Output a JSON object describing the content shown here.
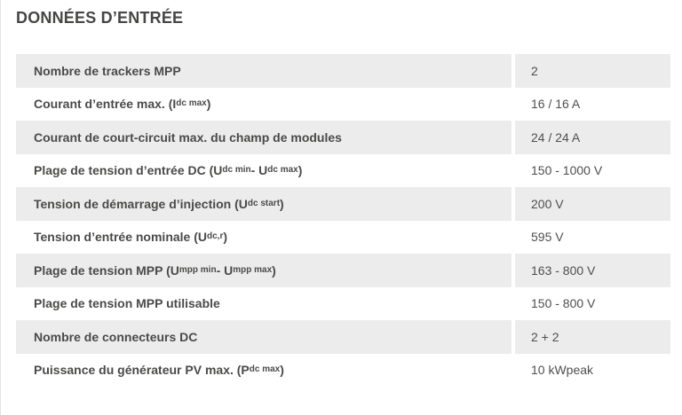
{
  "section": {
    "title": "DONNÉES D’ENTRÉE"
  },
  "colors": {
    "row_alt_bg": "#ebeceb",
    "title_text": "#464645",
    "label_text": "#4a4a49",
    "value_text": "#4f4f4e",
    "page_border": "#e3e3e3"
  },
  "table": {
    "rows": [
      {
        "label_parts": [
          {
            "t": "Nombre de trackers MPP"
          }
        ],
        "value": "2"
      },
      {
        "label_parts": [
          {
            "t": "Courant d’entrée max. (I"
          },
          {
            "sub": "dc max"
          },
          {
            "t": ")"
          }
        ],
        "value": "16 / 16 A"
      },
      {
        "label_parts": [
          {
            "t": "Courant de court-circuit max. du champ de modules"
          }
        ],
        "value": "24 / 24 A"
      },
      {
        "label_parts": [
          {
            "t": "Plage de tension d’entrée DC (U"
          },
          {
            "sub": "dc min"
          },
          {
            "t": " - U"
          },
          {
            "sub": "dc max"
          },
          {
            "t": ")"
          }
        ],
        "value": "150 - 1000 V"
      },
      {
        "label_parts": [
          {
            "t": "Tension de démarrage d’injection (U"
          },
          {
            "sub": "dc start"
          },
          {
            "t": ")"
          }
        ],
        "value": "200 V"
      },
      {
        "label_parts": [
          {
            "t": "Tension d’entrée nominale (U"
          },
          {
            "sub": "dc,r"
          },
          {
            "t": ")"
          }
        ],
        "value": "595 V"
      },
      {
        "label_parts": [
          {
            "t": "Plage de tension MPP (U"
          },
          {
            "sub": "mpp min"
          },
          {
            "t": " - U"
          },
          {
            "sub": "mpp max"
          },
          {
            "t": ")"
          }
        ],
        "value": "163 - 800 V"
      },
      {
        "label_parts": [
          {
            "t": "Plage de tension MPP utilisable"
          }
        ],
        "value": "150 - 800 V"
      },
      {
        "label_parts": [
          {
            "t": "Nombre de connecteurs DC"
          }
        ],
        "value": "2 + 2"
      },
      {
        "label_parts": [
          {
            "t": "Puissance du générateur PV max. (P"
          },
          {
            "sub": "dc max"
          },
          {
            "t": ")"
          }
        ],
        "value": "10 kWpeak"
      }
    ]
  }
}
